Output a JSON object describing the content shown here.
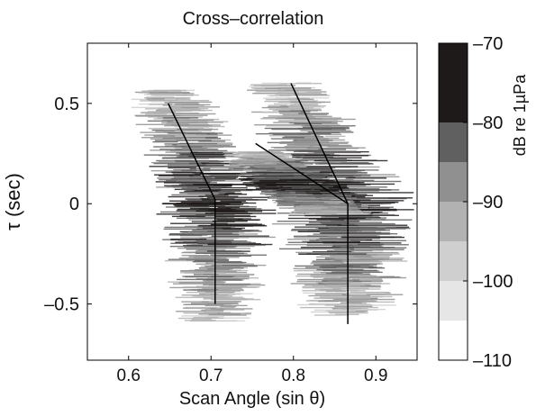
{
  "chart_data": {
    "type": "heatmap",
    "title": "Cross–correlation",
    "xlabel": "Scan Angle (sin θ)",
    "ylabel": "τ (sec)",
    "xlim": [
      0.55,
      0.95
    ],
    "ylim": [
      -0.78,
      0.8
    ],
    "xticks": [
      0.6,
      0.7,
      0.8,
      0.9
    ],
    "xtick_labels": [
      "0.6",
      "0.7",
      "0.8",
      "0.9"
    ],
    "yticks": [
      0.5,
      0,
      -0.5
    ],
    "ytick_labels": [
      "0.5",
      "0",
      "–0.5"
    ],
    "colorbar": {
      "label": "dB re 1µPa",
      "range": [
        -110,
        -70
      ],
      "ticks": [
        -70,
        -80,
        -90,
        -100,
        -110
      ],
      "tick_labels": [
        "–70",
        "–80",
        "–90",
        "–100",
        "–110"
      ],
      "levels": [
        {
          "from": -110,
          "to": -105,
          "color": "#ffffff"
        },
        {
          "from": -105,
          "to": -100,
          "color": "#e6e6e6"
        },
        {
          "from": -100,
          "to": -95,
          "color": "#cfcfcf"
        },
        {
          "from": -95,
          "to": -90,
          "color": "#b2b2b2"
        },
        {
          "from": -90,
          "to": -85,
          "color": "#909090"
        },
        {
          "from": -85,
          "to": -80,
          "color": "#606060"
        },
        {
          "from": -80,
          "to": -70,
          "color": "#1e1a1a"
        }
      ]
    },
    "blobs": [
      {
        "top": [
          0.645,
          0.57
        ],
        "mid": [
          0.705,
          0.0
        ],
        "bottom": [
          0.705,
          -0.58
        ],
        "width_top": 0.03,
        "width_mid": 0.045,
        "width_bottom": 0.03
      },
      {
        "top": [
          0.79,
          0.6
        ],
        "mid": [
          0.865,
          0.0
        ],
        "bottom": [
          0.865,
          -0.55
        ],
        "width_top": 0.03,
        "width_mid": 0.055,
        "width_bottom": 0.035
      },
      {
        "top": [
          0.755,
          0.26
        ],
        "mid": [
          0.8,
          0.1
        ],
        "bottom": [
          0.85,
          -0.05
        ],
        "width_top": 0.025,
        "width_mid": 0.04,
        "width_bottom": 0.03
      }
    ],
    "lines": [
      {
        "name": "left",
        "points": [
          [
            0.648,
            0.5
          ],
          [
            0.705,
            0.02
          ],
          [
            0.705,
            -0.5
          ]
        ]
      },
      {
        "name": "right",
        "points": [
          [
            0.797,
            0.6
          ],
          [
            0.866,
            0.0
          ],
          [
            0.866,
            -0.6
          ]
        ]
      },
      {
        "name": "right-branch",
        "points": [
          [
            0.754,
            0.3
          ],
          [
            0.866,
            0.0
          ]
        ]
      }
    ]
  }
}
